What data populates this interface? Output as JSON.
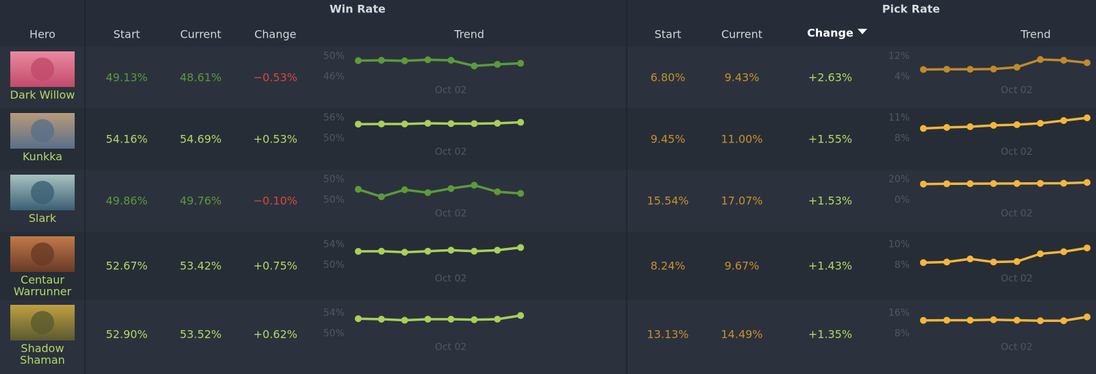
{
  "header": {
    "groups": [
      "Win Rate",
      "Pick Rate"
    ],
    "columns": [
      "Hero",
      "Start",
      "Current",
      "Change",
      "Trend",
      "Start",
      "Current",
      "Change",
      "Trend"
    ],
    "sorted_column": 7
  },
  "rows": [
    {
      "hero": "Dark Willow",
      "win_rate": {
        "start": "49.13%",
        "current": "48.61%",
        "change": "−0.53%",
        "color": "#5c9a3a",
        "change_color": "#d8473b",
        "trend": {
          "type": "line",
          "ylim": [
            46,
            50
          ],
          "yticks": [
            {
              "value": 50,
              "label": "50%"
            },
            {
              "value": 46,
              "label": "46%"
            }
          ],
          "x_label": "Oct 02",
          "color": "#5c9a3a",
          "values": [
            49.13,
            49.2,
            49.1,
            49.3,
            49.2,
            48.1,
            48.4,
            48.61
          ]
        }
      },
      "pick_rate": {
        "start": "6.80%",
        "current": "9.43%",
        "change": "+2.63%",
        "color": "#c8902c",
        "change_color": "#b4d866",
        "trend": {
          "type": "line",
          "ylim": [
            4,
            12
          ],
          "yticks": [
            {
              "value": 12,
              "label": "12%"
            },
            {
              "value": 4,
              "label": "4%"
            }
          ],
          "x_label": "Oct 02",
          "color": "#c08a2c",
          "values": [
            6.8,
            6.9,
            6.9,
            7.0,
            7.7,
            10.7,
            10.4,
            9.43
          ]
        }
      }
    },
    {
      "hero": "Kunkka",
      "win_rate": {
        "start": "54.16%",
        "current": "54.69%",
        "change": "+0.53%",
        "color": "#b4d866",
        "change_color": "#b4d866",
        "trend": {
          "type": "line",
          "ylim": [
            50,
            56
          ],
          "yticks": [
            {
              "value": 56,
              "label": "56%"
            },
            {
              "value": 50,
              "label": "50%"
            }
          ],
          "x_label": "Oct 02",
          "color": "#a8d05a",
          "values": [
            54.16,
            54.2,
            54.2,
            54.4,
            54.3,
            54.3,
            54.4,
            54.69
          ]
        }
      },
      "pick_rate": {
        "start": "9.45%",
        "current": "11.00%",
        "change": "+1.55%",
        "color": "#c8902c",
        "change_color": "#b4d866",
        "trend": {
          "type": "line",
          "ylim": [
            8,
            11
          ],
          "yticks": [
            {
              "value": 11,
              "label": "11%"
            },
            {
              "value": 8,
              "label": "8%"
            }
          ],
          "x_label": "Oct 02",
          "color": "#f4b63c",
          "values": [
            9.45,
            9.6,
            9.7,
            9.9,
            10.0,
            10.2,
            10.6,
            11.0
          ]
        }
      }
    },
    {
      "hero": "Slark",
      "win_rate": {
        "start": "49.86%",
        "current": "49.76%",
        "change": "−0.10%",
        "color": "#5c9a3a",
        "change_color": "#d8473b",
        "trend": {
          "type": "line",
          "ylim": [
            49.6,
            50.1
          ],
          "yticks": [
            {
              "value": 50.1,
              "label": "50%"
            },
            {
              "value": 49.6,
              "label": "50%"
            }
          ],
          "x_label": "Oct 02",
          "color": "#5c9a3a",
          "values": [
            49.86,
            49.68,
            49.85,
            49.78,
            49.88,
            49.96,
            49.8,
            49.76
          ]
        }
      },
      "pick_rate": {
        "start": "15.54%",
        "current": "17.07%",
        "change": "+1.53%",
        "color": "#c8902c",
        "change_color": "#b4d866",
        "trend": {
          "type": "line",
          "ylim": [
            0,
            20
          ],
          "yticks": [
            {
              "value": 20,
              "label": "20%"
            },
            {
              "value": 0,
              "label": "0%"
            }
          ],
          "x_label": "Oct 02",
          "color": "#f4b63c",
          "values": [
            15.54,
            15.8,
            15.9,
            16.0,
            16.1,
            16.2,
            16.3,
            17.07
          ]
        }
      }
    },
    {
      "hero": "Centaur Warrunner",
      "win_rate": {
        "start": "52.67%",
        "current": "53.42%",
        "change": "+0.75%",
        "color": "#b4d866",
        "change_color": "#b4d866",
        "trend": {
          "type": "line",
          "ylim": [
            50,
            54
          ],
          "yticks": [
            {
              "value": 54,
              "label": "54%"
            },
            {
              "value": 50,
              "label": "50%"
            }
          ],
          "x_label": "Oct 02",
          "color": "#a8d05a",
          "values": [
            52.67,
            52.7,
            52.5,
            52.7,
            52.9,
            52.7,
            52.9,
            53.42
          ]
        }
      },
      "pick_rate": {
        "start": "8.24%",
        "current": "9.67%",
        "change": "+1.43%",
        "color": "#c8902c",
        "change_color": "#b4d866",
        "trend": {
          "type": "line",
          "ylim": [
            8,
            10
          ],
          "yticks": [
            {
              "value": 10,
              "label": "10%"
            },
            {
              "value": 8,
              "label": "8%"
            }
          ],
          "x_label": "Oct 02",
          "color": "#f4b63c",
          "values": [
            8.24,
            8.3,
            8.6,
            8.3,
            8.35,
            9.1,
            9.3,
            9.67
          ]
        }
      }
    },
    {
      "hero": "Shadow Shaman",
      "win_rate": {
        "start": "52.90%",
        "current": "53.52%",
        "change": "+0.62%",
        "color": "#b4d866",
        "change_color": "#b4d866",
        "trend": {
          "type": "line",
          "ylim": [
            50,
            54
          ],
          "yticks": [
            {
              "value": 54,
              "label": "54%"
            },
            {
              "value": 50,
              "label": "50%"
            }
          ],
          "x_label": "Oct 02",
          "color": "#a8d05a",
          "values": [
            52.9,
            52.8,
            52.6,
            52.8,
            52.8,
            52.7,
            52.8,
            53.52
          ]
        }
      },
      "pick_rate": {
        "start": "13.13%",
        "current": "14.49%",
        "change": "+1.35%",
        "color": "#c8902c",
        "change_color": "#b4d866",
        "trend": {
          "type": "line",
          "ylim": [
            8,
            16
          ],
          "yticks": [
            {
              "value": 16,
              "label": "16%"
            },
            {
              "value": 8,
              "label": "8%"
            }
          ],
          "x_label": "Oct 02",
          "color": "#f4b63c",
          "values": [
            13.13,
            13.2,
            13.2,
            13.4,
            13.2,
            13.0,
            13.0,
            14.49
          ]
        }
      }
    }
  ]
}
